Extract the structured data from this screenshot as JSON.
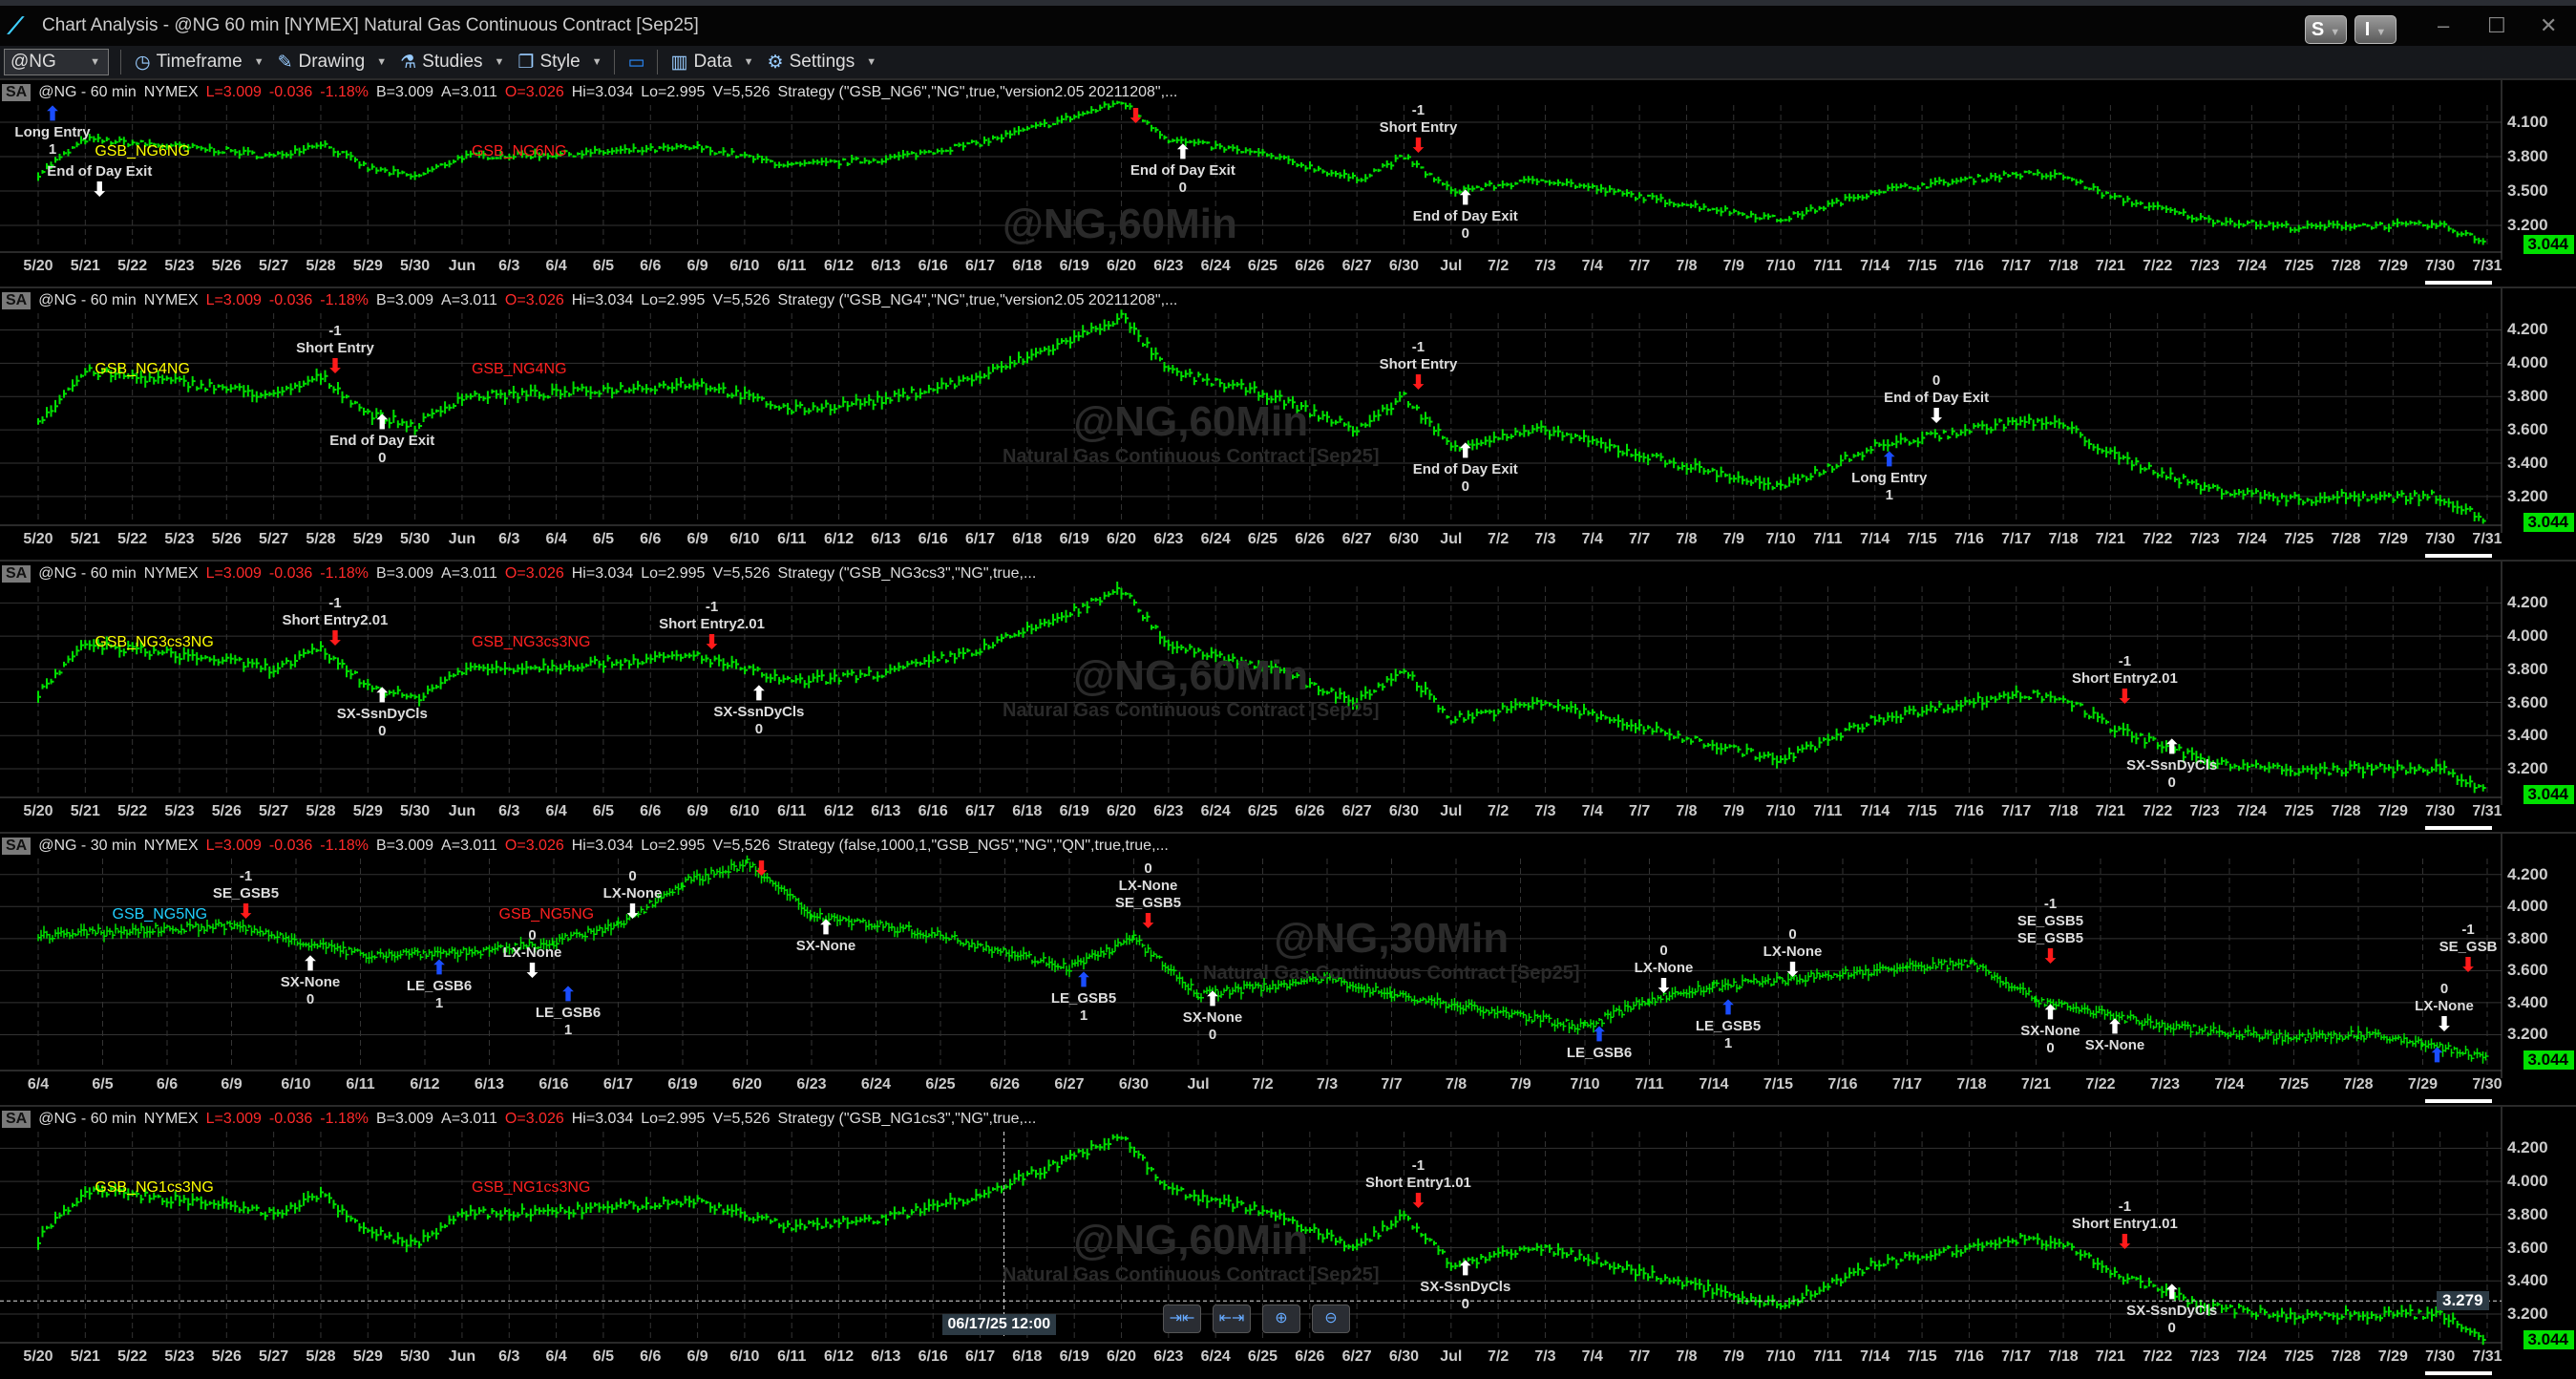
{
  "window": {
    "title": "Chart Analysis - @NG 60 min [NYMEX] Natural Gas Continuous Contract [Sep25]",
    "buttons": [
      "S",
      "I"
    ],
    "minimize": "–",
    "maximize": "☐",
    "close": "✕"
  },
  "toolbar": {
    "symbol": "@NG",
    "items": [
      {
        "label": "Timeframe",
        "icon": "clock-icon"
      },
      {
        "label": "Drawing",
        "icon": "pen-icon"
      },
      {
        "label": "Studies",
        "icon": "flask-icon"
      },
      {
        "label": "Style",
        "icon": "style-icon"
      },
      {
        "label": "Data",
        "icon": "bar-chart-icon"
      },
      {
        "label": "Settings",
        "icon": "gear-icon"
      }
    ]
  },
  "colors": {
    "bars": "#00e000",
    "trade_line": "#19d0e0",
    "short": "#ff1a1a",
    "long": "#1a4dff",
    "exit": "#ffffff",
    "last_price_bg": "#00e000"
  },
  "quote": {
    "L": "L=3.009",
    "chg": "-0.036",
    "pct": "-1.18%",
    "B": "B=3.009",
    "A": "A=3.011",
    "O": "O=3.026",
    "Hi": "Hi=3.034",
    "Lo": "Lo=2.995",
    "V": "V=5,526"
  },
  "last_price": "3.044",
  "dates_60": [
    "5/20",
    "5/21",
    "5/22",
    "5/23",
    "5/26",
    "5/27",
    "5/28",
    "5/29",
    "5/30",
    "Jun",
    "6/3",
    "6/4",
    "6/5",
    "6/6",
    "6/9",
    "6/10",
    "6/11",
    "6/12",
    "6/13",
    "6/16",
    "6/17",
    "6/18",
    "6/19",
    "6/20",
    "6/23",
    "6/24",
    "6/25",
    "6/26",
    "6/27",
    "6/30",
    "Jul",
    "7/2",
    "7/3",
    "7/4",
    "7/7",
    "7/8",
    "7/9",
    "7/10",
    "7/11",
    "7/14",
    "7/15",
    "7/16",
    "7/17",
    "7/18",
    "7/21",
    "7/22",
    "7/23",
    "7/24",
    "7/25",
    "7/28",
    "7/29",
    "7/30",
    "7/31"
  ],
  "dates_30": [
    "6/4",
    "6/5",
    "6/6",
    "6/9",
    "6/10",
    "6/11",
    "6/12",
    "6/13",
    "6/16",
    "6/17",
    "6/19",
    "6/20",
    "6/23",
    "6/24",
    "6/25",
    "6/26",
    "6/27",
    "6/30",
    "Jul",
    "7/2",
    "7/3",
    "7/7",
    "7/8",
    "7/9",
    "7/10",
    "7/11",
    "7/14",
    "7/15",
    "7/16",
    "7/17",
    "7/18",
    "7/21",
    "7/22",
    "7/23",
    "7/24",
    "7/25",
    "7/28",
    "7/29",
    "7/30"
  ],
  "price_path_60": [
    [
      "5/20",
      3.65
    ],
    [
      "5/21",
      3.95
    ],
    [
      "5/22",
      3.92
    ],
    [
      "5/26",
      3.85
    ],
    [
      "5/27",
      3.8
    ],
    [
      "5/28",
      3.92
    ],
    [
      "5/29",
      3.7
    ],
    [
      "5/30",
      3.62
    ],
    [
      "Jun",
      3.8
    ],
    [
      "6/4",
      3.82
    ],
    [
      "6/9",
      3.88
    ],
    [
      "6/11",
      3.72
    ],
    [
      "6/13",
      3.78
    ],
    [
      "6/17",
      3.92
    ],
    [
      "6/19",
      4.15
    ],
    [
      "6/20",
      4.28
    ],
    [
      "6/23",
      3.95
    ],
    [
      "6/25",
      3.82
    ],
    [
      "6/27",
      3.6
    ],
    [
      "6/30",
      3.8
    ],
    [
      "Jul",
      3.5
    ],
    [
      "7/3",
      3.6
    ],
    [
      "7/7",
      3.45
    ],
    [
      "7/10",
      3.25
    ],
    [
      "7/14",
      3.5
    ],
    [
      "7/17",
      3.65
    ],
    [
      "7/18",
      3.63
    ],
    [
      "7/21",
      3.45
    ],
    [
      "7/23",
      3.25
    ],
    [
      "7/25",
      3.18
    ],
    [
      "7/28",
      3.2
    ],
    [
      "7/30",
      3.2
    ],
    [
      "7/31",
      3.05
    ]
  ],
  "price_path_30": [
    [
      "6/4",
      3.82
    ],
    [
      "6/9",
      3.88
    ],
    [
      "6/11",
      3.7
    ],
    [
      "6/13",
      3.72
    ],
    [
      "6/16",
      3.78
    ],
    [
      "6/17",
      3.88
    ],
    [
      "6/19",
      4.15
    ],
    [
      "6/20",
      4.27
    ],
    [
      "6/23",
      3.95
    ],
    [
      "6/25",
      3.82
    ],
    [
      "6/27",
      3.62
    ],
    [
      "6/30",
      3.8
    ],
    [
      "Jul",
      3.45
    ],
    [
      "7/3",
      3.55
    ],
    [
      "7/7",
      3.45
    ],
    [
      "7/10",
      3.25
    ],
    [
      "7/11",
      3.42
    ],
    [
      "7/14",
      3.5
    ],
    [
      "7/17",
      3.62
    ],
    [
      "7/18",
      3.65
    ],
    [
      "7/21",
      3.42
    ],
    [
      "7/23",
      3.25
    ],
    [
      "7/25",
      3.18
    ],
    [
      "7/28",
      3.2
    ],
    [
      "7/29",
      3.15
    ],
    [
      "7/30",
      3.05
    ]
  ],
  "panels": [
    {
      "interval": "@NG - 60 min",
      "exchange": "NYMEX",
      "strategy": "Strategy (\"GSB_NG6\",\"NG\",true,\"version2.05 20211208\",...",
      "dates": "60",
      "ticks": [
        "3.200",
        "3.500",
        "3.800",
        "4.100"
      ],
      "ylim": [
        3.0,
        4.25
      ],
      "legend": [
        {
          "text": "GSB_NG6NG",
          "color": "#ffff00",
          "date": "5/21"
        },
        {
          "text": "GSB_NG6NG",
          "color": "#ff2020",
          "date": "Jun"
        }
      ],
      "watermark": "@NG,60Min",
      "watermark_sub": "",
      "annotations": [
        {
          "date": "5/21",
          "price": 4.02,
          "lines": [
            "End of Day Exit"
          ],
          "arrow": "down",
          "color": "#fff"
        },
        {
          "date": "5/20",
          "price": 3.78,
          "lines": [
            "Long Entry",
            "1"
          ],
          "arrow": "up",
          "color": "#1a4dff",
          "below": true
        },
        {
          "date": "6/20",
          "price": 4.28,
          "lines": [],
          "arrow": "down",
          "color": "#ff1a1a"
        },
        {
          "date": "6/23",
          "price": 3.95,
          "lines": [
            "End of Day Exit",
            "0"
          ],
          "arrow": "up",
          "color": "#fff",
          "below": true
        },
        {
          "date": "6/30",
          "price": 3.82,
          "lines": [
            "-1",
            "Short Entry"
          ],
          "arrow": "down",
          "color": "#ff1a1a"
        },
        {
          "date": "Jul",
          "price": 3.55,
          "lines": [
            "End of Day Exit",
            "0"
          ],
          "arrow": "up",
          "color": "#fff",
          "below": true
        }
      ]
    },
    {
      "interval": "@NG - 60 min",
      "exchange": "NYMEX",
      "strategy": "Strategy (\"GSB_NG4\",\"NG\",true,\"version2.05 20211208\",...",
      "dates": "60",
      "ticks": [
        "3.200",
        "3.400",
        "3.600",
        "3.800",
        "4.000",
        "4.200"
      ],
      "ylim": [
        3.05,
        4.3
      ],
      "legend": [
        {
          "text": "GSB_NG4NG",
          "color": "#ffff00",
          "date": "5/21"
        },
        {
          "text": "GSB_NG4NG",
          "color": "#ff2020",
          "date": "Jun"
        }
      ],
      "watermark": "@NG,60Min",
      "watermark_sub": "Natural Gas Continuous Contract [Sep25]",
      "annotations": [
        {
          "date": "5/28",
          "price": 3.9,
          "lines": [
            "-1",
            "Short Entry"
          ],
          "arrow": "down",
          "color": "#ff1a1a"
        },
        {
          "date": "5/29",
          "price": 3.72,
          "lines": [
            "End of Day Exit",
            "0"
          ],
          "arrow": "up",
          "color": "#fff",
          "below": true
        },
        {
          "date": "6/30",
          "price": 3.8,
          "lines": [
            "-1",
            "Short Entry"
          ],
          "arrow": "down",
          "color": "#ff1a1a"
        },
        {
          "date": "Jul",
          "price": 3.55,
          "lines": [
            "End of Day Exit",
            "0"
          ],
          "arrow": "up",
          "color": "#fff",
          "below": true
        },
        {
          "date": "7/15",
          "price": 3.6,
          "lines": [
            "0",
            "End of Day Exit"
          ],
          "arrow": "down",
          "color": "#fff"
        },
        {
          "date": "7/14",
          "price": 3.5,
          "lines": [
            "Long Entry",
            "1"
          ],
          "arrow": "up",
          "color": "#1a4dff",
          "below": true
        }
      ]
    },
    {
      "interval": "@NG - 60 min",
      "exchange": "NYMEX",
      "strategy": "Strategy (\"GSB_NG3cs3\",\"NG\",true,...",
      "dates": "60",
      "ticks": [
        "3.200",
        "3.400",
        "3.600",
        "3.800",
        "4.000",
        "4.200"
      ],
      "ylim": [
        3.05,
        4.3
      ],
      "legend": [
        {
          "text": "GSB_NG3cs3NG",
          "color": "#ffff00",
          "date": "5/21"
        },
        {
          "text": "GSB_NG3cs3NG",
          "color": "#ff2020",
          "date": "Jun"
        }
      ],
      "watermark": "@NG,60Min",
      "watermark_sub": "Natural Gas Continuous Contract [Sep25]",
      "annotations": [
        {
          "date": "5/28",
          "price": 3.9,
          "lines": [
            "-1",
            "Short Entry2.01"
          ],
          "arrow": "down",
          "color": "#ff1a1a"
        },
        {
          "date": "5/29",
          "price": 3.72,
          "lines": [
            "SX-SsnDyCls",
            "0"
          ],
          "arrow": "up",
          "color": "#fff",
          "below": true
        },
        {
          "date": "6/9",
          "price": 3.88,
          "lines": [
            "-1",
            "Short Entry2.01"
          ],
          "arrow": "down",
          "color": "#ff1a1a"
        },
        {
          "date": "6/10",
          "price": 3.73,
          "lines": [
            "SX-SsnDyCls",
            "0"
          ],
          "arrow": "up",
          "color": "#fff",
          "below": true
        },
        {
          "date": "7/21",
          "price": 3.55,
          "lines": [
            "-1",
            "Short Entry2.01"
          ],
          "arrow": "down",
          "color": "#ff1a1a"
        },
        {
          "date": "7/22",
          "price": 3.35,
          "lines": [
            "SX-SsnDyCls",
            "0"
          ],
          "arrow": "up",
          "color": "#fff",
          "below": true
        }
      ]
    },
    {
      "interval": "@NG - 30 min",
      "exchange": "NYMEX",
      "strategy": "Strategy (false,1000,1,\"GSB_NG5\",\"NG\",\"QN\",true,true,...",
      "dates": "30",
      "ticks": [
        "3.200",
        "3.400",
        "3.600",
        "3.800",
        "4.000",
        "4.200"
      ],
      "ylim": [
        3.0,
        4.3
      ],
      "legend": [
        {
          "text": "GSB_NG5NG",
          "color": "#20d0ff",
          "date": "6/5"
        },
        {
          "text": "GSB_NG5NG",
          "color": "#ff2020",
          "date": "6/13"
        }
      ],
      "watermark": "@NG,30Min",
      "watermark_sub": "Natural Gas Continuous Contract [Sep25]",
      "annotations": [
        {
          "date": "6/9",
          "price": 3.88,
          "lines": [
            "-1",
            "SE_GSB5"
          ],
          "arrow": "down",
          "color": "#ff1a1a"
        },
        {
          "date": "6/10",
          "price": 3.72,
          "lines": [
            "SX-None",
            "0"
          ],
          "arrow": "up",
          "color": "#fff",
          "below": true
        },
        {
          "date": "6/12",
          "price": 3.7,
          "lines": [
            "LE_GSB6",
            "1"
          ],
          "arrow": "up",
          "color": "#1a4dff",
          "below": true
        },
        {
          "date": "6/13",
          "price": 3.75,
          "lines": [
            "0",
            "LX-None"
          ],
          "arrow": "down",
          "color": "#fff"
        },
        {
          "date": "6/16",
          "price": 3.74,
          "lines": [
            "LE_GSB6",
            "1"
          ],
          "arrow": "up",
          "color": "#1a4dff",
          "below": true
        },
        {
          "date": "6/17",
          "price": 3.88,
          "lines": [
            "0",
            "LX-None"
          ],
          "arrow": "down",
          "color": "#fff"
        },
        {
          "date": "6/20",
          "price": 4.27,
          "lines": [],
          "arrow": "down",
          "color": "#ff1a1a"
        },
        {
          "date": "6/23",
          "price": 3.95,
          "lines": [
            "SX-None"
          ],
          "arrow": "up",
          "color": "#fff",
          "below": true
        },
        {
          "date": "6/27",
          "price": 3.62,
          "lines": [
            "LE_GSB5",
            "1"
          ],
          "arrow": "up",
          "color": "#1a4dff",
          "below": true
        },
        {
          "date": "6/30",
          "price": 3.82,
          "lines": [
            "0",
            "LX-None",
            "SE_GSB5"
          ],
          "arrow": "down",
          "color": "#ff1a1a"
        },
        {
          "date": "Jul",
          "price": 3.5,
          "lines": [
            "SX-None",
            "0"
          ],
          "arrow": "up",
          "color": "#fff",
          "below": true
        },
        {
          "date": "7/10",
          "price": 3.28,
          "lines": [
            "LE_GSB6"
          ],
          "arrow": "up",
          "color": "#1a4dff",
          "below": true
        },
        {
          "date": "7/11",
          "price": 3.42,
          "lines": [
            "0",
            "LX-None"
          ],
          "arrow": "down",
          "color": "#fff"
        },
        {
          "date": "7/14",
          "price": 3.48,
          "lines": [
            "LE_GSB5",
            "1"
          ],
          "arrow": "up",
          "color": "#1a4dff",
          "below": true
        },
        {
          "date": "7/15",
          "price": 3.52,
          "lines": [
            "0",
            "LX-None"
          ],
          "arrow": "down",
          "color": "#fff"
        },
        {
          "date": "7/21",
          "price": 3.6,
          "lines": [
            "-1",
            "SE_GSB5",
            "SE_GSB5"
          ],
          "arrow": "down",
          "color": "#ff1a1a"
        },
        {
          "date": "7/21",
          "price": 3.42,
          "lines": [
            "SX-None",
            "0"
          ],
          "arrow": "up",
          "color": "#fff",
          "below": true
        },
        {
          "date": "7/22",
          "price": 3.33,
          "lines": [
            "SX-None"
          ],
          "arrow": "up",
          "color": "#fff",
          "below": true
        },
        {
          "date": "7/29",
          "price": 3.15,
          "lines": [],
          "arrow": "up",
          "color": "#1a4dff",
          "below": true
        },
        {
          "date": "7/30",
          "price": 3.18,
          "lines": [
            "0",
            "LX-None"
          ],
          "arrow": "down",
          "color": "#fff"
        },
        {
          "date": "7/30",
          "price": 3.1,
          "lines": [
            "-1",
            "SE_GSB"
          ],
          "arrow": "down",
          "color": "#ff1a1a",
          "offset": 1
        }
      ]
    },
    {
      "interval": "@NG - 60 min",
      "exchange": "NYMEX",
      "strategy": "Strategy (\"GSB_NG1cs3\",\"NG\",true,...",
      "dates": "60",
      "ticks": [
        "3.200",
        "3.400",
        "3.600",
        "3.800",
        "4.000",
        "4.200"
      ],
      "ylim": [
        3.05,
        4.3
      ],
      "legend": [
        {
          "text": "GSB_NG1cs3NG",
          "color": "#ffff00",
          "date": "5/21"
        },
        {
          "text": "GSB_NG1cs3NG",
          "color": "#ff2020",
          "date": "Jun"
        }
      ],
      "watermark": "@NG,60Min",
      "watermark_sub": "Natural Gas Continuous Contract [Sep25]",
      "crosshair_price": "3.279",
      "crosshair_date": "06/17/25 12:00",
      "annotations": [
        {
          "date": "6/30",
          "price": 3.8,
          "lines": [
            "-1",
            "Short Entry1.01"
          ],
          "arrow": "down",
          "color": "#ff1a1a"
        },
        {
          "date": "Jul",
          "price": 3.55,
          "lines": [
            "SX-SsnDyCls",
            "0"
          ],
          "arrow": "up",
          "color": "#fff",
          "below": true
        },
        {
          "date": "7/21",
          "price": 3.55,
          "lines": [
            "-1",
            "Short Entry1.01"
          ],
          "arrow": "down",
          "color": "#ff1a1a"
        },
        {
          "date": "7/22",
          "price": 3.35,
          "lines": [
            "SX-SsnDyCls",
            "0"
          ],
          "arrow": "up",
          "color": "#fff",
          "below": true
        }
      ]
    }
  ],
  "chart_controls": [
    {
      "icon": "compress-bars-icon",
      "glyph": "⇥⇤"
    },
    {
      "icon": "expand-bars-icon",
      "glyph": "⇤⇥"
    },
    {
      "icon": "zoom-in-icon",
      "glyph": "⊕"
    },
    {
      "icon": "zoom-out-icon",
      "glyph": "⊖"
    }
  ]
}
